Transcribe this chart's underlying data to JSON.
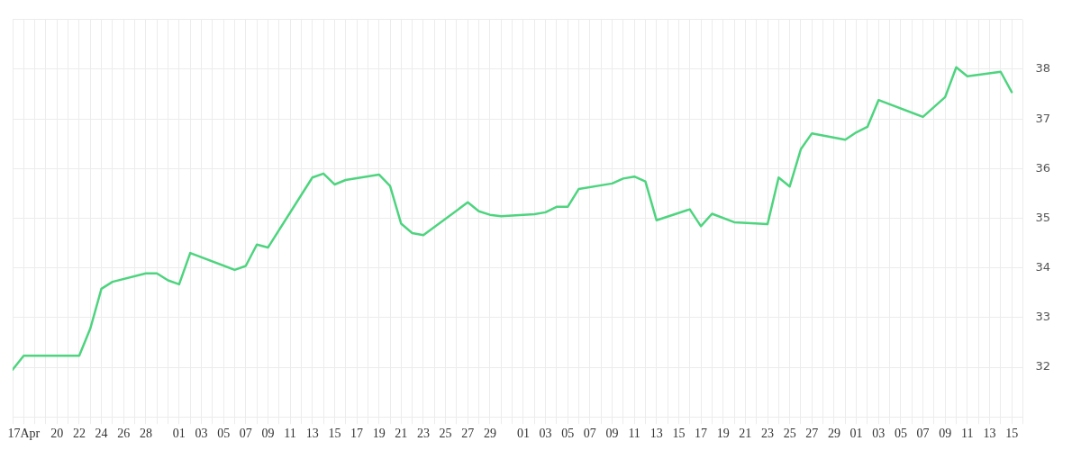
{
  "chart_data": {
    "type": "line",
    "x": [
      "--04-16",
      "--04-17",
      "--04-22",
      "--04-23",
      "--04-24",
      "--04-25",
      "--04-28",
      "--04-29",
      "--04-30",
      "--05-01",
      "--05-02",
      "--05-06",
      "--05-07",
      "--05-08",
      "--05-09",
      "--05-13",
      "--05-14",
      "--05-15",
      "--05-16",
      "--05-19",
      "--05-20",
      "--05-21",
      "--05-22",
      "--05-23",
      "--05-27",
      "--05-28",
      "--05-29",
      "--05-30",
      "--06-02",
      "--06-03",
      "--06-04",
      "--06-05",
      "--06-06",
      "--06-09",
      "--06-10",
      "--06-11",
      "--06-12",
      "--06-13",
      "--06-16",
      "--06-17",
      "--06-18",
      "--06-20",
      "--06-23",
      "--06-24",
      "--06-25",
      "--06-26",
      "--06-27",
      "--06-30",
      "--07-01",
      "--07-02",
      "--07-03",
      "--07-07",
      "--07-09",
      "--07-10",
      "--07-11",
      "--07-14",
      "--07-15"
    ],
    "series": [
      {
        "color": "#4ed47f",
        "values": [
          31.95,
          32.23,
          32.23,
          32.78,
          33.58,
          33.72,
          33.89,
          33.89,
          33.75,
          33.67,
          34.3,
          33.96,
          34.04,
          34.47,
          34.41,
          35.82,
          35.9,
          35.68,
          35.77,
          35.88,
          35.65,
          34.89,
          34.7,
          34.66,
          35.32,
          35.14,
          35.07,
          35.04,
          35.08,
          35.12,
          35.23,
          35.23,
          35.59,
          35.7,
          35.8,
          35.84,
          35.74,
          34.96,
          35.18,
          34.84,
          35.09,
          34.92,
          34.88,
          35.82,
          35.64,
          36.39,
          36.71,
          36.58,
          36.73,
          36.84,
          37.38,
          37.04,
          37.44,
          38.04,
          37.86,
          37.95,
          37.54
        ]
      }
    ],
    "xlim": [
      "--04-16",
      "--07-16"
    ],
    "xticks": [
      {
        "value": "--04-16",
        "label": null
      },
      {
        "value": "--04-17",
        "label": "17Apr"
      },
      {
        "value": "--04-18",
        "label": null
      },
      {
        "value": "--04-19",
        "label": null
      },
      {
        "value": "--04-20",
        "label": "20"
      },
      {
        "value": "--04-21",
        "label": null
      },
      {
        "value": "--04-22",
        "label": "22"
      },
      {
        "value": "--04-23",
        "label": null
      },
      {
        "value": "--04-24",
        "label": "24"
      },
      {
        "value": "--04-25",
        "label": null
      },
      {
        "value": "--04-26",
        "label": "26"
      },
      {
        "value": "--04-27",
        "label": null
      },
      {
        "value": "--04-28",
        "label": "28"
      },
      {
        "value": "--04-29",
        "label": null
      },
      {
        "value": "--04-30",
        "label": null
      },
      {
        "value": "--05-01",
        "label": "01"
      },
      {
        "value": "--05-02",
        "label": null
      },
      {
        "value": "--05-03",
        "label": "03"
      },
      {
        "value": "--05-04",
        "label": null
      },
      {
        "value": "--05-05",
        "label": "05"
      },
      {
        "value": "--05-06",
        "label": null
      },
      {
        "value": "--05-07",
        "label": "07"
      },
      {
        "value": "--05-08",
        "label": null
      },
      {
        "value": "--05-09",
        "label": "09"
      },
      {
        "value": "--05-10",
        "label": null
      },
      {
        "value": "--05-11",
        "label": "11"
      },
      {
        "value": "--05-12",
        "label": null
      },
      {
        "value": "--05-13",
        "label": "13"
      },
      {
        "value": "--05-14",
        "label": null
      },
      {
        "value": "--05-15",
        "label": "15"
      },
      {
        "value": "--05-16",
        "label": null
      },
      {
        "value": "--05-17",
        "label": "17"
      },
      {
        "value": "--05-18",
        "label": null
      },
      {
        "value": "--05-19",
        "label": "19"
      },
      {
        "value": "--05-20",
        "label": null
      },
      {
        "value": "--05-21",
        "label": "21"
      },
      {
        "value": "--05-22",
        "label": null
      },
      {
        "value": "--05-23",
        "label": "23"
      },
      {
        "value": "--05-24",
        "label": null
      },
      {
        "value": "--05-25",
        "label": "25"
      },
      {
        "value": "--05-26",
        "label": null
      },
      {
        "value": "--05-27",
        "label": "27"
      },
      {
        "value": "--05-28",
        "label": null
      },
      {
        "value": "--05-29",
        "label": "29"
      },
      {
        "value": "--05-30",
        "label": null
      },
      {
        "value": "--05-31",
        "label": null
      },
      {
        "value": "--06-01",
        "label": "01"
      },
      {
        "value": "--06-02",
        "label": null
      },
      {
        "value": "--06-03",
        "label": "03"
      },
      {
        "value": "--06-04",
        "label": null
      },
      {
        "value": "--06-05",
        "label": "05"
      },
      {
        "value": "--06-06",
        "label": null
      },
      {
        "value": "--06-07",
        "label": "07"
      },
      {
        "value": "--06-08",
        "label": null
      },
      {
        "value": "--06-09",
        "label": "09"
      },
      {
        "value": "--06-10",
        "label": null
      },
      {
        "value": "--06-11",
        "label": "11"
      },
      {
        "value": "--06-12",
        "label": null
      },
      {
        "value": "--06-13",
        "label": "13"
      },
      {
        "value": "--06-14",
        "label": null
      },
      {
        "value": "--06-15",
        "label": "15"
      },
      {
        "value": "--06-16",
        "label": null
      },
      {
        "value": "--06-17",
        "label": "17"
      },
      {
        "value": "--06-18",
        "label": null
      },
      {
        "value": "--06-19",
        "label": "19"
      },
      {
        "value": "--06-20",
        "label": null
      },
      {
        "value": "--06-21",
        "label": "21"
      },
      {
        "value": "--06-22",
        "label": null
      },
      {
        "value": "--06-23",
        "label": "23"
      },
      {
        "value": "--06-24",
        "label": null
      },
      {
        "value": "--06-25",
        "label": "25"
      },
      {
        "value": "--06-26",
        "label": null
      },
      {
        "value": "--06-27",
        "label": "27"
      },
      {
        "value": "--06-28",
        "label": null
      },
      {
        "value": "--06-29",
        "label": "29"
      },
      {
        "value": "--06-30",
        "label": null
      },
      {
        "value": "--07-01",
        "label": "01"
      },
      {
        "value": "--07-02",
        "label": null
      },
      {
        "value": "--07-03",
        "label": "03"
      },
      {
        "value": "--07-04",
        "label": null
      },
      {
        "value": "--07-05",
        "label": "05"
      },
      {
        "value": "--07-06",
        "label": null
      },
      {
        "value": "--07-07",
        "label": "07"
      },
      {
        "value": "--07-08",
        "label": null
      },
      {
        "value": "--07-09",
        "label": "09"
      },
      {
        "value": "--07-10",
        "label": null
      },
      {
        "value": "--07-11",
        "label": "11"
      },
      {
        "value": "--07-12",
        "label": null
      },
      {
        "value": "--07-13",
        "label": "13"
      },
      {
        "value": "--07-14",
        "label": null
      },
      {
        "value": "--07-15",
        "label": "15"
      },
      {
        "value": "--07-16",
        "label": null
      }
    ],
    "ylim": [
      31,
      39
    ],
    "yticks": [
      {
        "value": 31,
        "label": null
      },
      32,
      33,
      34,
      35,
      36,
      37,
      38,
      {
        "value": 39,
        "label": null
      }
    ],
    "grid": true,
    "legend": false,
    "marker": "none",
    "line_style": "solid"
  }
}
